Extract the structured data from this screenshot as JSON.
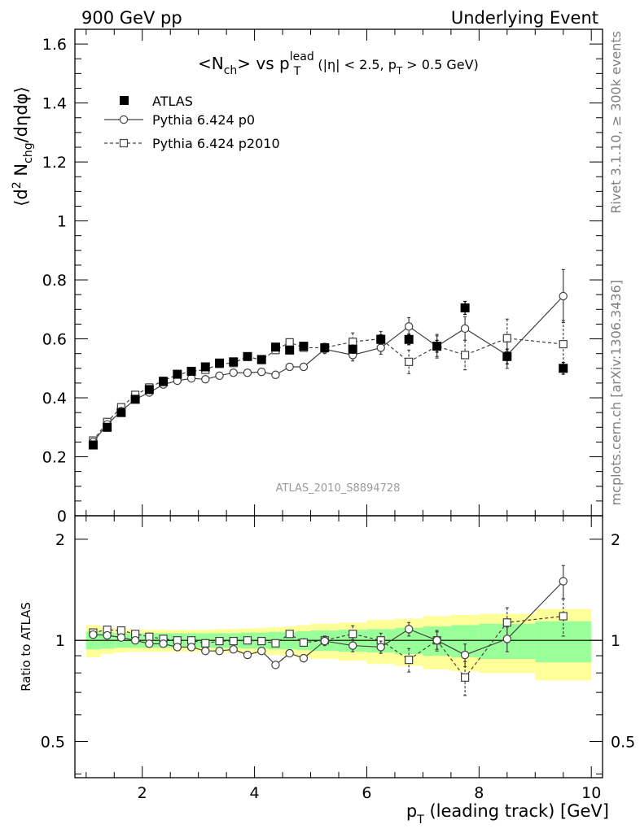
{
  "header": {
    "left": "900 GeV pp",
    "right": "Underlying Event"
  },
  "side_labels": {
    "top": "Rivet 3.1.10, ≥ 300k events",
    "bottom": "mcplots.cern.ch [arXiv:1306.3436]"
  },
  "watermark": "ATLAS_2010_S8894728",
  "chart_data": [
    {
      "type": "scatter",
      "panel": "main",
      "title": "<N_ch> vs p_T^lead (|η| < 2.5, p_T > 0.5 GeV)",
      "ylabel": "⟨d² N_chg/dηdφ⟩",
      "xlim": [
        0.8,
        10.2
      ],
      "ylim": [
        0,
        1.65
      ],
      "yticks": [
        0,
        0.2,
        0.4,
        0.6,
        0.8,
        1,
        1.2,
        1.4,
        1.6
      ],
      "ytick_labels": [
        "0",
        "0.2",
        "0.4",
        "0.6",
        "0.8",
        "1",
        "1.2",
        "1.4",
        "1.6"
      ],
      "legend": {
        "placement": "top-left",
        "entries": [
          "ATLAS",
          "Pythia 6.424 p0",
          "Pythia 6.424 p2010"
        ]
      },
      "series": [
        {
          "name": "ATLAS",
          "marker": "filled-square",
          "x": [
            1.125,
            1.375,
            1.625,
            1.875,
            2.125,
            2.375,
            2.625,
            2.875,
            3.125,
            3.375,
            3.625,
            3.875,
            4.125,
            4.375,
            4.625,
            4.875,
            5.25,
            5.75,
            6.25,
            6.75,
            7.25,
            7.75,
            8.5,
            9.5
          ],
          "y": [
            0.24,
            0.3,
            0.35,
            0.395,
            0.428,
            0.455,
            0.48,
            0.49,
            0.505,
            0.518,
            0.522,
            0.54,
            0.53,
            0.572,
            0.562,
            0.575,
            0.57,
            0.565,
            0.598,
            0.598,
            0.575,
            0.705,
            0.54,
            0.5
          ],
          "yerr": [
            0.004,
            0.004,
            0.004,
            0.004,
            0.004,
            0.005,
            0.005,
            0.005,
            0.006,
            0.006,
            0.006,
            0.007,
            0.008,
            0.01,
            0.01,
            0.012,
            0.012,
            0.014,
            0.016,
            0.018,
            0.02,
            0.022,
            0.025,
            0.02
          ]
        },
        {
          "name": "Pythia 6.424 p0",
          "marker": "open-circle",
          "line": "solid",
          "x": [
            1.125,
            1.375,
            1.625,
            1.875,
            2.125,
            2.375,
            2.625,
            2.875,
            3.125,
            3.375,
            3.625,
            3.875,
            4.125,
            4.375,
            4.625,
            4.875,
            5.25,
            5.75,
            6.25,
            6.75,
            7.25,
            7.75,
            8.5,
            9.5
          ],
          "y": [
            0.25,
            0.31,
            0.355,
            0.395,
            0.418,
            0.445,
            0.458,
            0.466,
            0.463,
            0.475,
            0.485,
            0.485,
            0.488,
            0.478,
            0.505,
            0.505,
            0.565,
            0.545,
            0.57,
            0.642,
            0.575,
            0.635,
            0.545,
            0.745
          ],
          "yerr": [
            0.003,
            0.003,
            0.003,
            0.004,
            0.004,
            0.004,
            0.005,
            0.005,
            0.005,
            0.006,
            0.006,
            0.006,
            0.007,
            0.008,
            0.01,
            0.012,
            0.015,
            0.02,
            0.022,
            0.03,
            0.035,
            0.04,
            0.045,
            0.09
          ]
        },
        {
          "name": "Pythia 6.424 p2010",
          "marker": "open-square",
          "line": "dashed",
          "x": [
            1.125,
            1.375,
            1.625,
            1.875,
            2.125,
            2.375,
            2.625,
            2.875,
            3.125,
            3.375,
            3.625,
            3.875,
            4.125,
            4.375,
            4.625,
            4.875,
            5.25,
            5.75,
            6.25,
            6.75,
            7.25,
            7.75,
            8.5,
            9.5
          ],
          "y": [
            0.255,
            0.318,
            0.368,
            0.41,
            0.435,
            0.458,
            0.478,
            0.49,
            0.495,
            0.515,
            0.518,
            0.54,
            0.528,
            0.562,
            0.588,
            0.57,
            0.57,
            0.59,
            0.6,
            0.522,
            0.575,
            0.545,
            0.602,
            0.582
          ],
          "yerr": [
            0.003,
            0.003,
            0.003,
            0.004,
            0.004,
            0.004,
            0.005,
            0.005,
            0.005,
            0.006,
            0.006,
            0.006,
            0.007,
            0.008,
            0.012,
            0.012,
            0.015,
            0.03,
            0.025,
            0.04,
            0.04,
            0.05,
            0.065,
            0.08
          ]
        }
      ]
    },
    {
      "type": "scatter",
      "panel": "ratio",
      "xlabel": "p_T (leading track) [GeV]",
      "ylabel": "Ratio to ATLAS",
      "xlim": [
        0.8,
        10.2
      ],
      "ylim": [
        0.39,
        2.35
      ],
      "scale": "log",
      "xticks": [
        2,
        4,
        6,
        8,
        10
      ],
      "xtick_labels": [
        "2",
        "4",
        "6",
        "8",
        "10"
      ],
      "yticks": [
        0.5,
        1,
        2
      ],
      "ytick_labels": [
        "0.5",
        "1",
        "2"
      ],
      "reference_line": 1,
      "bands": {
        "x_edges": [
          1.0,
          1.25,
          1.5,
          1.75,
          2.0,
          2.25,
          2.5,
          2.75,
          3.0,
          3.25,
          3.5,
          3.75,
          4.0,
          4.25,
          4.5,
          4.75,
          5.0,
          5.5,
          6.0,
          6.5,
          7.0,
          7.5,
          8.0,
          9.0,
          10.0
        ],
        "green_halfwidth": [
          0.06,
          0.055,
          0.05,
          0.05,
          0.05,
          0.05,
          0.05,
          0.05,
          0.05,
          0.05,
          0.05,
          0.055,
          0.055,
          0.06,
          0.06,
          0.065,
          0.07,
          0.075,
          0.08,
          0.09,
          0.1,
          0.11,
          0.12,
          0.14
        ],
        "yellow_halfwidth": [
          0.11,
          0.09,
          0.08,
          0.075,
          0.075,
          0.075,
          0.075,
          0.075,
          0.075,
          0.08,
          0.08,
          0.085,
          0.09,
          0.095,
          0.1,
          0.11,
          0.12,
          0.13,
          0.15,
          0.16,
          0.18,
          0.19,
          0.2,
          0.24
        ]
      },
      "series": [
        {
          "name": "Pythia 6.424 p0",
          "marker": "open-circle",
          "line": "solid",
          "x": [
            1.125,
            1.375,
            1.625,
            1.875,
            2.125,
            2.375,
            2.625,
            2.875,
            3.125,
            3.375,
            3.625,
            3.875,
            4.125,
            4.375,
            4.625,
            4.875,
            5.25,
            5.75,
            6.25,
            6.75,
            7.25,
            7.75,
            8.5,
            9.5
          ],
          "y": [
            1.04,
            1.035,
            1.02,
            1.0,
            0.977,
            0.977,
            0.955,
            0.955,
            0.93,
            0.93,
            0.94,
            0.905,
            0.93,
            0.845,
            0.915,
            0.885,
            0.995,
            0.965,
            0.955,
            1.08,
            1.0,
            0.905,
            1.01,
            1.5
          ],
          "yerr": [
            0.01,
            0.01,
            0.01,
            0.01,
            0.01,
            0.01,
            0.01,
            0.01,
            0.012,
            0.012,
            0.012,
            0.012,
            0.014,
            0.016,
            0.02,
            0.022,
            0.03,
            0.04,
            0.04,
            0.05,
            0.06,
            0.07,
            0.085,
            0.17
          ]
        },
        {
          "name": "Pythia 6.424 p2010",
          "marker": "open-square",
          "line": "dashed",
          "x": [
            1.125,
            1.375,
            1.625,
            1.875,
            2.125,
            2.375,
            2.625,
            2.875,
            3.125,
            3.375,
            3.625,
            3.875,
            4.125,
            4.375,
            4.625,
            4.875,
            5.25,
            5.75,
            6.25,
            6.75,
            7.25,
            7.75,
            8.5,
            9.5
          ],
          "y": [
            1.055,
            1.075,
            1.07,
            1.045,
            1.025,
            1.01,
            1.0,
            1.0,
            0.98,
            0.995,
            0.995,
            1.0,
            0.995,
            0.98,
            1.045,
            0.985,
            1.0,
            1.045,
            1.0,
            0.875,
            1.0,
            0.775,
            1.13,
            1.18
          ],
          "yerr": [
            0.01,
            0.01,
            0.01,
            0.01,
            0.01,
            0.01,
            0.01,
            0.01,
            0.012,
            0.012,
            0.012,
            0.012,
            0.014,
            0.016,
            0.025,
            0.025,
            0.03,
            0.06,
            0.05,
            0.07,
            0.07,
            0.09,
            0.12,
            0.15
          ]
        }
      ]
    }
  ]
}
